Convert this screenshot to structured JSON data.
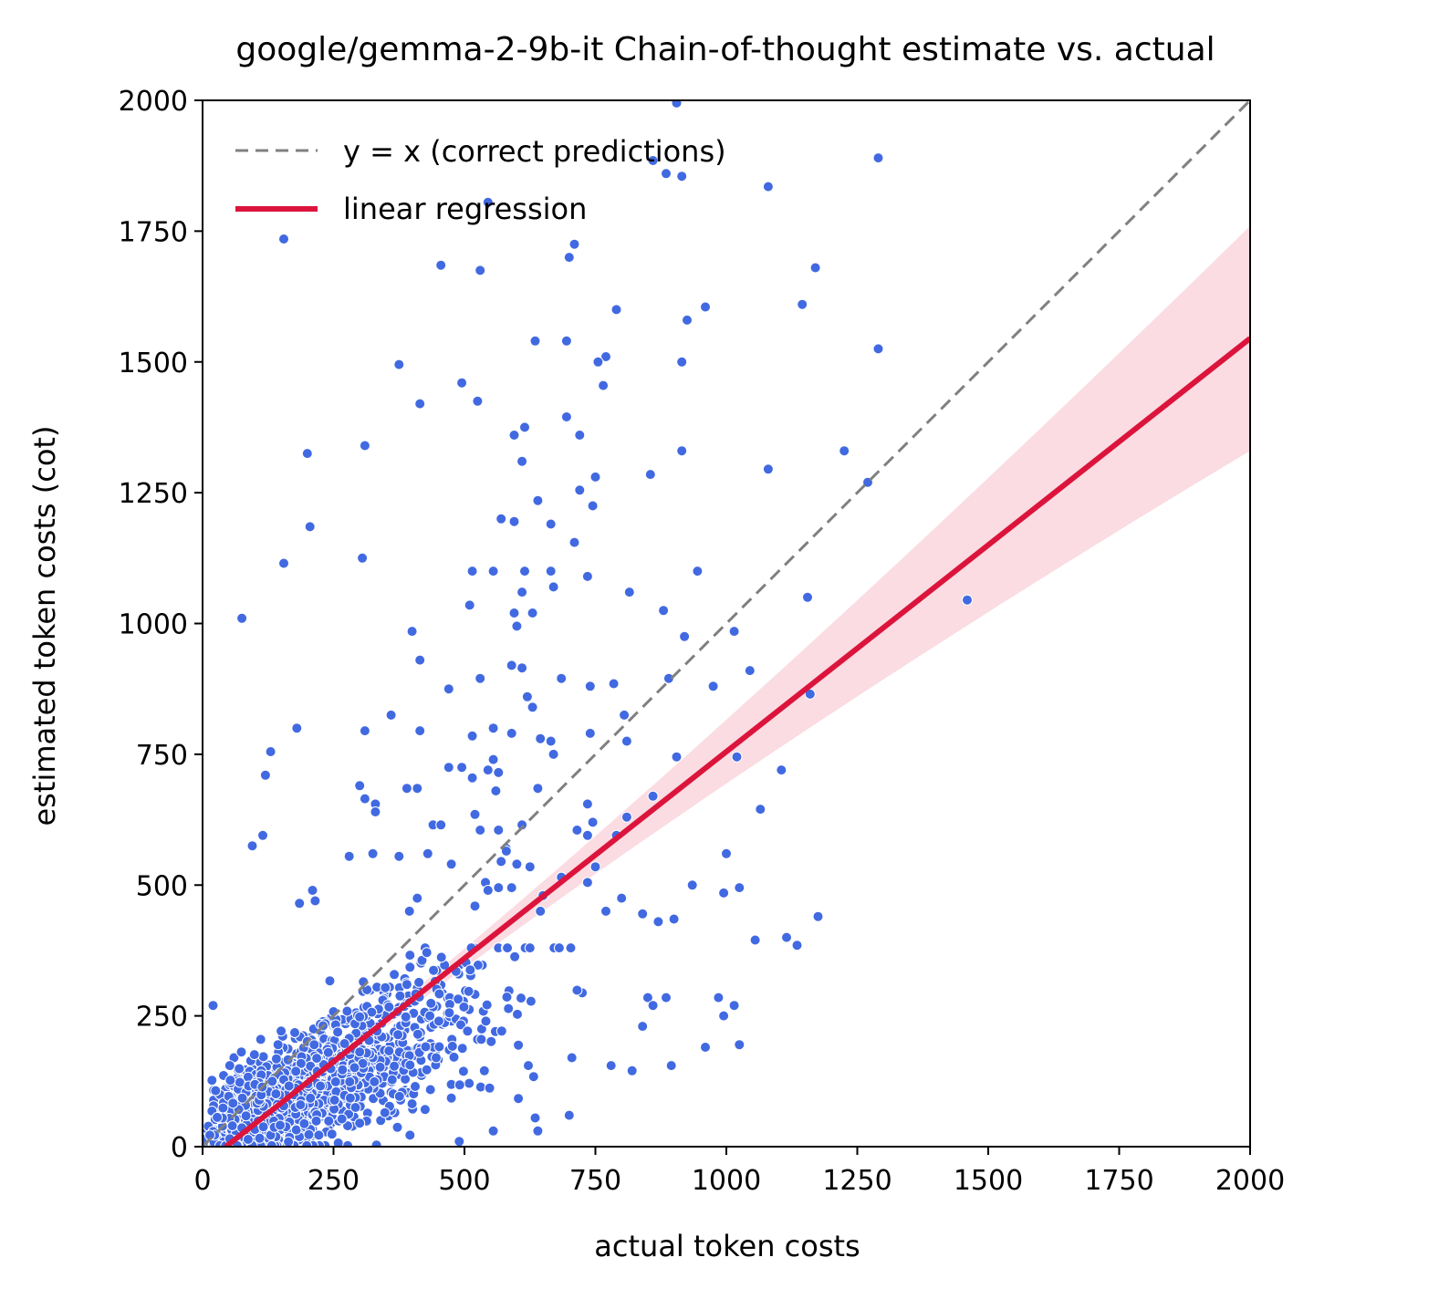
{
  "chart_data": {
    "type": "scatter",
    "title": "google/gemma-2-9b-it Chain-of-thought estimate vs. actual",
    "xlabel": "actual token costs",
    "ylabel": "estimated token costs (cot)",
    "xlim": [
      0,
      2000
    ],
    "ylim": [
      0,
      2000
    ],
    "xticks": [
      "0",
      "250",
      "500",
      "750",
      "1000",
      "1250",
      "1500",
      "1750",
      "2000"
    ],
    "yticks": [
      "0",
      "250",
      "500",
      "750",
      "1000",
      "1250",
      "1500",
      "1750",
      "2000"
    ],
    "grid": false,
    "legend_position": "top-left",
    "legend": [
      {
        "label": "y = x (correct predictions)",
        "style": "dashed",
        "color": "#808080"
      },
      {
        "label": "linear regression",
        "style": "solid",
        "color": "#DC143C"
      }
    ],
    "colors": {
      "points": "#4169E1",
      "regression": "#DC143C",
      "band": "#DC143C",
      "identity": "#808080"
    },
    "regression": {
      "slope": 0.79,
      "intercept": -35,
      "band_halfwidth_at_2000": 215
    },
    "identity_line": [
      [
        0,
        0
      ],
      [
        2000,
        2000
      ]
    ],
    "points_notable": [
      [
        905,
        1995
      ],
      [
        1290,
        1890
      ],
      [
        860,
        1885
      ],
      [
        885,
        1860
      ],
      [
        915,
        1855
      ],
      [
        1080,
        1835
      ],
      [
        155,
        1735
      ],
      [
        545,
        1805
      ],
      [
        710,
        1725
      ],
      [
        700,
        1700
      ],
      [
        455,
        1685
      ],
      [
        530,
        1675
      ],
      [
        1170,
        1680
      ],
      [
        790,
        1600
      ],
      [
        960,
        1605
      ],
      [
        1145,
        1610
      ],
      [
        925,
        1580
      ],
      [
        635,
        1540
      ],
      [
        695,
        1540
      ],
      [
        770,
        1510
      ],
      [
        755,
        1500
      ],
      [
        915,
        1500
      ],
      [
        1290,
        1525
      ],
      [
        375,
        1495
      ],
      [
        495,
        1460
      ],
      [
        765,
        1455
      ],
      [
        525,
        1425
      ],
      [
        415,
        1420
      ],
      [
        695,
        1395
      ],
      [
        615,
        1375
      ],
      [
        595,
        1360
      ],
      [
        720,
        1360
      ],
      [
        310,
        1340
      ],
      [
        200,
        1325
      ],
      [
        915,
        1330
      ],
      [
        1225,
        1330
      ],
      [
        610,
        1310
      ],
      [
        1080,
        1295
      ],
      [
        750,
        1280
      ],
      [
        855,
        1285
      ],
      [
        1270,
        1270
      ],
      [
        720,
        1255
      ],
      [
        745,
        1225
      ],
      [
        640,
        1235
      ],
      [
        665,
        1190
      ],
      [
        570,
        1200
      ],
      [
        595,
        1195
      ],
      [
        205,
        1185
      ],
      [
        710,
        1155
      ],
      [
        305,
        1125
      ],
      [
        155,
        1115
      ],
      [
        515,
        1100
      ],
      [
        555,
        1100
      ],
      [
        615,
        1100
      ],
      [
        665,
        1100
      ],
      [
        945,
        1100
      ],
      [
        735,
        1090
      ],
      [
        670,
        1070
      ],
      [
        610,
        1060
      ],
      [
        815,
        1060
      ],
      [
        510,
        1035
      ],
      [
        1155,
        1050
      ],
      [
        1460,
        1045
      ],
      [
        595,
        1020
      ],
      [
        630,
        1020
      ],
      [
        880,
        1025
      ],
      [
        75,
        1010
      ],
      [
        600,
        995
      ],
      [
        400,
        985
      ],
      [
        1015,
        985
      ],
      [
        920,
        975
      ],
      [
        415,
        930
      ],
      [
        1045,
        910
      ],
      [
        590,
        920
      ],
      [
        610,
        915
      ],
      [
        685,
        895
      ],
      [
        890,
        895
      ],
      [
        530,
        895
      ],
      [
        470,
        875
      ],
      [
        975,
        880
      ],
      [
        785,
        885
      ],
      [
        740,
        880
      ],
      [
        620,
        860
      ],
      [
        1160,
        865
      ],
      [
        630,
        840
      ],
      [
        360,
        825
      ],
      [
        805,
        825
      ],
      [
        555,
        800
      ],
      [
        590,
        790
      ],
      [
        415,
        795
      ],
      [
        310,
        795
      ],
      [
        180,
        800
      ],
      [
        515,
        785
      ],
      [
        740,
        790
      ],
      [
        810,
        775
      ],
      [
        645,
        780
      ],
      [
        665,
        775
      ],
      [
        670,
        750
      ],
      [
        905,
        745
      ],
      [
        1020,
        745
      ],
      [
        555,
        740
      ],
      [
        130,
        755
      ],
      [
        470,
        725
      ],
      [
        495,
        725
      ],
      [
        515,
        705
      ],
      [
        545,
        720
      ],
      [
        565,
        715
      ],
      [
        120,
        710
      ],
      [
        1105,
        720
      ],
      [
        640,
        685
      ],
      [
        560,
        680
      ],
      [
        390,
        685
      ],
      [
        410,
        685
      ],
      [
        300,
        690
      ],
      [
        310,
        665
      ],
      [
        330,
        655
      ],
      [
        860,
        670
      ],
      [
        735,
        655
      ],
      [
        1065,
        645
      ],
      [
        810,
        630
      ],
      [
        330,
        640
      ],
      [
        520,
        635
      ],
      [
        745,
        620
      ],
      [
        610,
        615
      ],
      [
        440,
        615
      ],
      [
        455,
        615
      ],
      [
        115,
        595
      ],
      [
        95,
        575
      ],
      [
        530,
        605
      ],
      [
        565,
        605
      ],
      [
        715,
        605
      ],
      [
        735,
        595
      ],
      [
        790,
        595
      ],
      [
        580,
        570
      ],
      [
        580,
        565
      ],
      [
        325,
        560
      ],
      [
        280,
        555
      ],
      [
        375,
        555
      ],
      [
        430,
        560
      ],
      [
        1000,
        560
      ],
      [
        475,
        540
      ],
      [
        570,
        545
      ],
      [
        600,
        540
      ],
      [
        625,
        535
      ],
      [
        750,
        535
      ],
      [
        685,
        515
      ],
      [
        540,
        505
      ],
      [
        565,
        495
      ],
      [
        590,
        495
      ],
      [
        735,
        505
      ],
      [
        935,
        500
      ],
      [
        1025,
        495
      ],
      [
        210,
        490
      ],
      [
        545,
        490
      ],
      [
        995,
        485
      ],
      [
        800,
        475
      ],
      [
        650,
        480
      ],
      [
        215,
        470
      ],
      [
        185,
        465
      ],
      [
        410,
        475
      ],
      [
        395,
        450
      ],
      [
        520,
        460
      ],
      [
        645,
        450
      ],
      [
        770,
        450
      ],
      [
        840,
        445
      ],
      [
        1175,
        440
      ],
      [
        870,
        430
      ],
      [
        900,
        435
      ],
      [
        1055,
        395
      ],
      [
        1115,
        400
      ],
      [
        1135,
        385
      ],
      [
        985,
        285
      ],
      [
        995,
        250
      ],
      [
        1015,
        270
      ],
      [
        1025,
        195
      ],
      [
        960,
        190
      ],
      [
        850,
        285
      ],
      [
        885,
        285
      ],
      [
        840,
        230
      ],
      [
        860,
        270
      ],
      [
        895,
        155
      ],
      [
        820,
        145
      ],
      [
        705,
        170
      ],
      [
        780,
        155
      ],
      [
        20,
        270
      ],
      [
        180,
        800
      ],
      [
        635,
        55
      ],
      [
        640,
        30
      ],
      [
        700,
        60
      ],
      [
        490,
        10
      ],
      [
        555,
        30
      ]
    ]
  }
}
